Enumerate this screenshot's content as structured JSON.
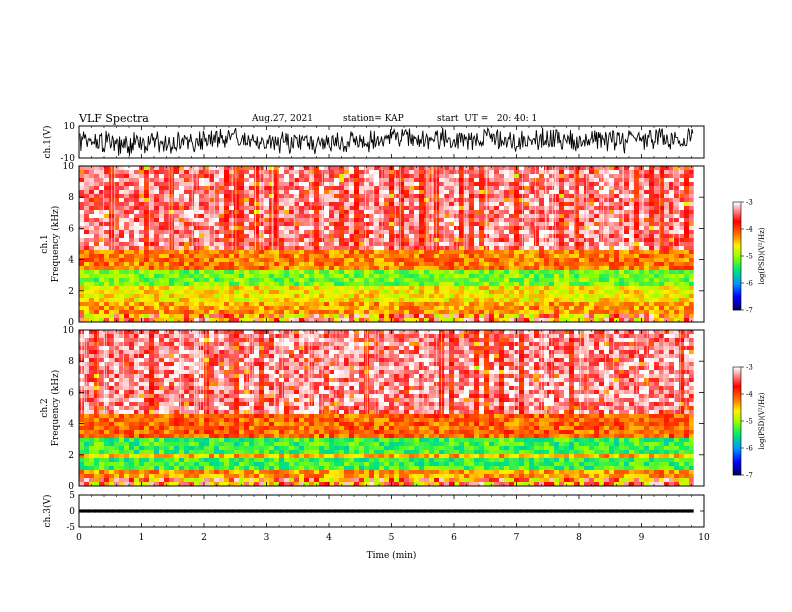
{
  "header": {
    "title": "VLF Spectra",
    "date": "Aug.27, 2021",
    "station": "station= KAP",
    "start": "start  UT =   20: 40: 1"
  },
  "chart_data": [
    {
      "type": "line",
      "panel": "ch1-waveform",
      "ylabel": "ch.1(V)",
      "ylim": [
        -10,
        10
      ],
      "yticks": [
        "10",
        "-10"
      ],
      "xlim": [
        0,
        10
      ],
      "note_series": "dense noisy waveform spanning roughly -8 to +8 V from 0 to 9.8 min"
    },
    {
      "type": "heatmap",
      "panel": "ch1-spectrogram",
      "ylabel": "ch.1\nFrequency (kHz)",
      "ylabel_line1": "ch.1",
      "ylabel_line2": "Frequency (kHz)",
      "ylim": [
        0,
        10
      ],
      "yticks": [
        "0",
        "2",
        "4",
        "6",
        "8",
        "10"
      ],
      "xlim": [
        0,
        10
      ],
      "data_end_min": 9.83,
      "bands": [
        {
          "from_khz": 0.0,
          "to_khz": 0.4,
          "level": "mixed"
        },
        {
          "from_khz": 0.4,
          "to_khz": 1.2,
          "level": -4.3
        },
        {
          "from_khz": 1.2,
          "to_khz": 2.2,
          "level": -4.6
        },
        {
          "from_khz": 2.2,
          "to_khz": 3.3,
          "level": -5.1
        },
        {
          "from_khz": 3.3,
          "to_khz": 4.5,
          "level": -4.2
        },
        {
          "from_khz": 4.5,
          "to_khz": 10.0,
          "level": -3.3
        }
      ],
      "colorbar": {
        "label": "log(PSD)(V²/Hz)",
        "min": -7,
        "max": -3,
        "ticks": [
          "-3",
          "-4",
          "-5",
          "-6",
          "-7"
        ],
        "colors": [
          "#000066",
          "#0000ff",
          "#00a0ff",
          "#00ff60",
          "#c0ff00",
          "#ffff00",
          "#ff8000",
          "#ff0000",
          "#ffffff"
        ]
      }
    },
    {
      "type": "heatmap",
      "panel": "ch2-spectrogram",
      "ylabel_line1": "ch.2",
      "ylabel_line2": "Frequency (kHz)",
      "ylim": [
        0,
        10
      ],
      "yticks": [
        "0",
        "2",
        "4",
        "6",
        "8",
        "10"
      ],
      "xlim": [
        0,
        10
      ],
      "data_end_min": 9.83,
      "bands": [
        {
          "from_khz": 0.0,
          "to_khz": 0.4,
          "level": "mixed"
        },
        {
          "from_khz": 0.4,
          "to_khz": 0.9,
          "level": -4.3
        },
        {
          "from_khz": 0.9,
          "to_khz": 1.7,
          "level": -5.3
        },
        {
          "from_khz": 1.7,
          "to_khz": 2.1,
          "level": -4.4
        },
        {
          "from_khz": 2.1,
          "to_khz": 3.0,
          "level": -5.3
        },
        {
          "from_khz": 3.0,
          "to_khz": 4.5,
          "level": -4.1
        },
        {
          "from_khz": 4.5,
          "to_khz": 10.0,
          "level": -3.3
        }
      ],
      "colorbar": {
        "label": "log(PSD)(V²/Hz)",
        "min": -7,
        "max": -3,
        "ticks": [
          "-3",
          "-4",
          "-5",
          "-6",
          "-7"
        ]
      }
    },
    {
      "type": "line",
      "panel": "ch3-waveform",
      "ylabel": "ch.3(V)",
      "ylim": [
        -5,
        5
      ],
      "yticks": [
        "5",
        "0",
        "-5"
      ],
      "xlim": [
        0,
        10
      ],
      "level_v": 0,
      "amplitude_v": 0.5
    }
  ],
  "xaxis": {
    "label": "Time (min)",
    "ticks": [
      "0",
      "1",
      "2",
      "3",
      "4",
      "5",
      "6",
      "7",
      "8",
      "9",
      "10"
    ]
  }
}
